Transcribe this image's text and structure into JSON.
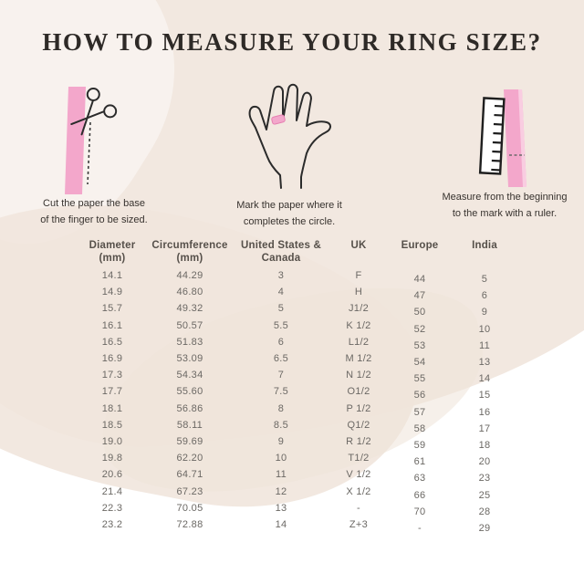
{
  "title": "HOW TO MEASURE YOUR RING SIZE?",
  "steps": [
    {
      "id": "cut",
      "line1": "Cut the paper the base",
      "line2": "of the finger to be sized."
    },
    {
      "id": "mark",
      "line1": "Mark the paper where it",
      "line2": "completes the circle."
    },
    {
      "id": "measure",
      "line1": "Measure from the beginning",
      "line2": "to the mark with a ruler."
    }
  ],
  "icons": [
    "scissors-icon",
    "paper-strip",
    "hand-icon",
    "ring-mark-icon",
    "ruler-icon"
  ],
  "colors": {
    "accent_pink": "#F3A7CB",
    "accent_pink_light": "#F9CDE1",
    "background_beige": "#F2E8E0",
    "title_text": "#2E2A27",
    "table_text": "#6B6864",
    "header_text": "#56504A",
    "outline_dark": "#2B2B2B"
  },
  "chart_data": {
    "type": "table",
    "columns": [
      {
        "line1": "Diameter",
        "line2": "(mm)"
      },
      {
        "line1": "Circumference",
        "line2": "(mm)"
      },
      {
        "line1": "United States &",
        "line2": "Canada"
      },
      {
        "line1": "UK",
        "line2": ""
      },
      {
        "line1": "Europe",
        "line2": ""
      },
      {
        "line1": "India",
        "line2": ""
      }
    ],
    "rows": [
      [
        "14.1",
        "44.29",
        "3",
        "F",
        "44",
        "5"
      ],
      [
        "14.9",
        "46.80",
        "4",
        "H",
        "47",
        "6"
      ],
      [
        "15.7",
        "49.32",
        "5",
        "J1/2",
        "50",
        "9"
      ],
      [
        "16.1",
        "50.57",
        "5.5",
        "K 1/2",
        "52",
        "10"
      ],
      [
        "16.5",
        "51.83",
        "6",
        "L1/2",
        "53",
        "11"
      ],
      [
        "16.9",
        "53.09",
        "6.5",
        "M 1/2",
        "54",
        "13"
      ],
      [
        "17.3",
        "54.34",
        "7",
        "N 1/2",
        "55",
        "14"
      ],
      [
        "17.7",
        "55.60",
        "7.5",
        "O1/2",
        "56",
        "15"
      ],
      [
        "18.1",
        "56.86",
        "8",
        "P 1/2",
        "57",
        "16"
      ],
      [
        "18.5",
        "58.11",
        "8.5",
        "Q1/2",
        "58",
        "17"
      ],
      [
        "19.0",
        "59.69",
        "9",
        "R 1/2",
        "59",
        "18"
      ],
      [
        "19.8",
        "62.20",
        "10",
        "T1/2",
        "61",
        "20"
      ],
      [
        "20.6",
        "64.71",
        "11",
        "V 1/2",
        "63",
        "23"
      ],
      [
        "21.4",
        "67.23",
        "12",
        "X 1/2",
        "66",
        "25"
      ],
      [
        "22.3",
        "70.05",
        "13",
        "-",
        "70",
        "28"
      ],
      [
        "23.2",
        "72.88",
        "14",
        "Z+3",
        "-",
        "29"
      ]
    ]
  }
}
